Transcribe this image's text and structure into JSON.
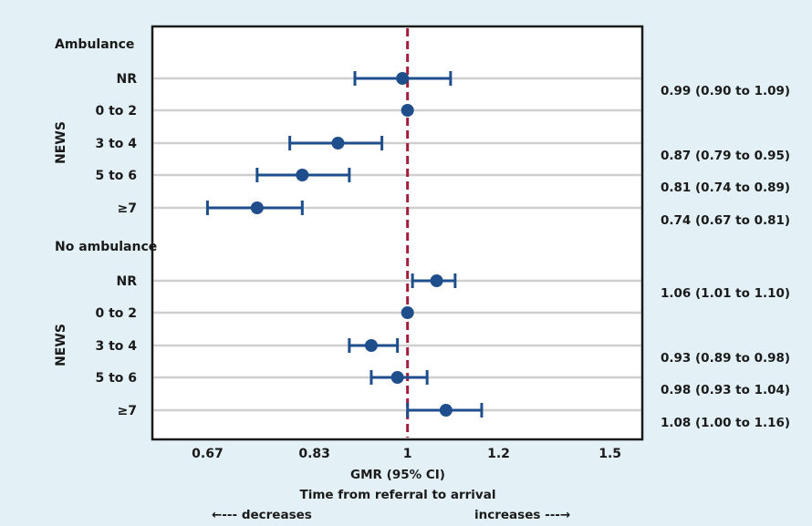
{
  "colors": {
    "background": "#e3f1f6",
    "plot_background": "#ffffff",
    "marker": "#1f4e8c",
    "reference_line": "#a31d3a",
    "gridline": "#cfcfcf",
    "text": "#1a1a1a"
  },
  "chart_data": {
    "type": "scatter",
    "subtype": "forest-plot",
    "xlabel": "GMR (95% CI)",
    "subtitle": "Time from referral to arrival",
    "direction_left": "←--- decreases",
    "direction_right": "increases ---→",
    "x_ticks": [
      "0.67",
      "0.83",
      "1",
      "1.2",
      "1.5"
    ],
    "x_tick_values": [
      0.67,
      0.83,
      1,
      1.2,
      1.5
    ],
    "xlim": [
      0.6,
      1.6
    ],
    "x_scale": "log",
    "reference_line": 1,
    "grid": true,
    "groups": [
      {
        "name": "Ambulance",
        "side_label": "NEWS",
        "rows": [
          {
            "label": "NR",
            "est": 0.99,
            "lo": 0.9,
            "hi": 1.09,
            "ci_text": "0.99 (0.90 to 1.09)"
          },
          {
            "label": "0 to 2",
            "est": 1.0,
            "lo": null,
            "hi": null,
            "ci_text": ""
          },
          {
            "label": "3 to 4",
            "est": 0.87,
            "lo": 0.79,
            "hi": 0.95,
            "ci_text": "0.87 (0.79 to 0.95)"
          },
          {
            "label": "5 to 6",
            "est": 0.81,
            "lo": 0.74,
            "hi": 0.89,
            "ci_text": "0.81 (0.74 to 0.89)"
          },
          {
            "label": "≥7",
            "est": 0.74,
            "lo": 0.67,
            "hi": 0.81,
            "ci_text": "0.74 (0.67 to 0.81)"
          }
        ]
      },
      {
        "name": "No ambulance",
        "side_label": "NEWS",
        "rows": [
          {
            "label": "NR",
            "est": 1.06,
            "lo": 1.01,
            "hi": 1.1,
            "ci_text": "1.06 (1.01 to 1.10)"
          },
          {
            "label": "0 to 2",
            "est": 1.0,
            "lo": null,
            "hi": null,
            "ci_text": ""
          },
          {
            "label": "3 to 4",
            "est": 0.93,
            "lo": 0.89,
            "hi": 0.98,
            "ci_text": "0.93 (0.89 to 0.98)"
          },
          {
            "label": "5 to 6",
            "est": 0.98,
            "lo": 0.93,
            "hi": 1.04,
            "ci_text": "0.98 (0.93 to 1.04)"
          },
          {
            "label": "≥7",
            "est": 1.08,
            "lo": 1.0,
            "hi": 1.16,
            "ci_text": "1.08 (1.00 to 1.16)"
          }
        ]
      }
    ]
  }
}
